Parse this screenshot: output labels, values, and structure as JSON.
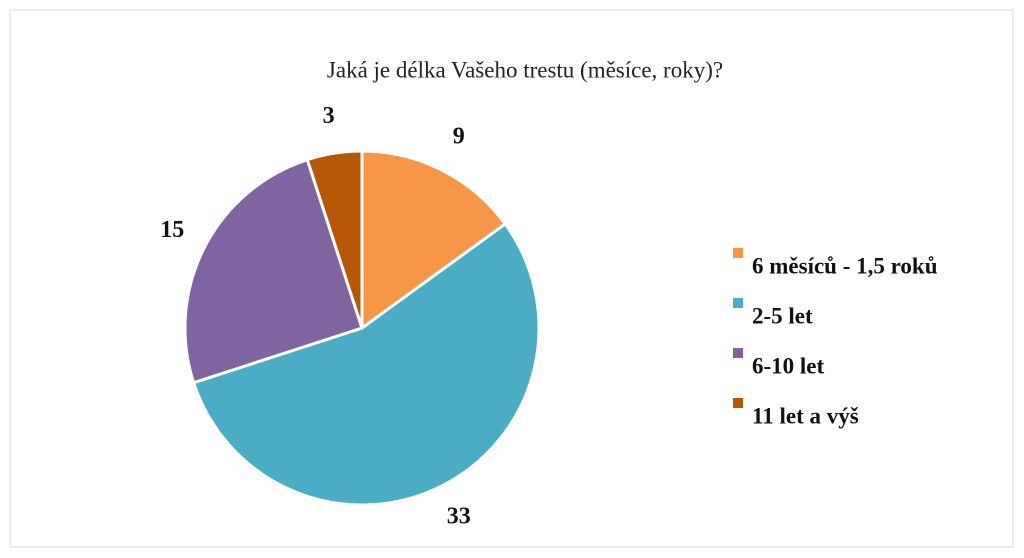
{
  "chart_data": {
    "type": "pie",
    "title": "Jaká je délka Vašeho trestu (měsíce, roky)?",
    "categories": [
      "6 měsíců - 1,5 roků",
      "2-5 let",
      "6-10 let",
      "11 let a výš"
    ],
    "values": [
      9,
      33,
      15,
      3
    ],
    "colors": [
      "#f79646",
      "#4bacc6",
      "#8064a2",
      "#b65708"
    ],
    "legend": "right"
  }
}
